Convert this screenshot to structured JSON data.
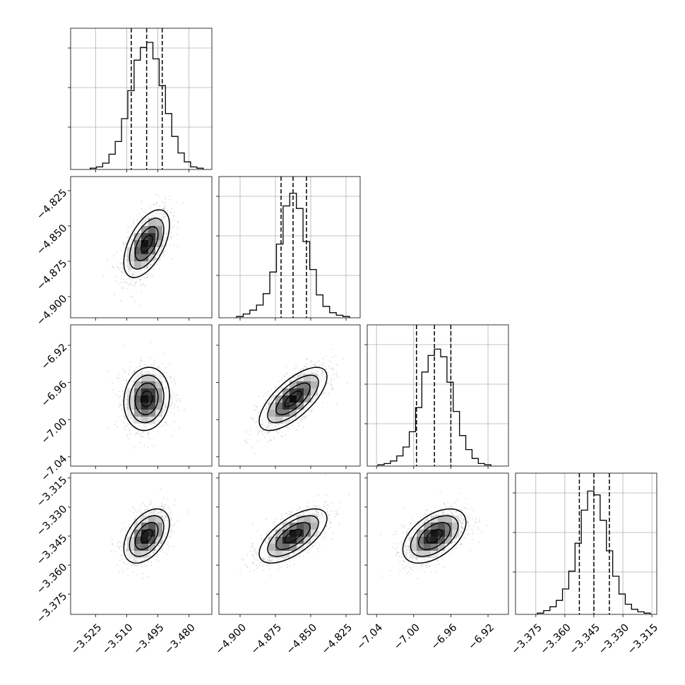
{
  "chart_data": {
    "type": "corner",
    "title": "",
    "parameters": [
      {
        "label": "",
        "range": [
          -3.537,
          -3.469
        ],
        "ticks": [
          -3.525,
          -3.51,
          -3.495,
          -3.48
        ],
        "tick_labels": [
          "−3.525",
          "−3.510",
          "−3.495",
          "−3.480"
        ]
      },
      {
        "label": "",
        "range": [
          -4.915,
          -4.815
        ],
        "ticks": [
          -4.9,
          -4.875,
          -4.85,
          -4.825
        ],
        "tick_labels": [
          "−4.900",
          "−4.875",
          "−4.850",
          "−4.825"
        ]
      },
      {
        "label": "",
        "range": [
          -7.05,
          -6.898
        ],
        "ticks": [
          -7.04,
          -7.0,
          -6.96,
          -6.92
        ],
        "tick_labels": [
          "−7.04",
          "−7.00",
          "−6.96",
          "−6.92"
        ]
      },
      {
        "label": "",
        "range": [
          -3.3855,
          -3.3125
        ],
        "ticks": [
          -3.375,
          -3.36,
          -3.345,
          -3.33,
          -3.315
        ],
        "tick_labels": [
          "−3.375",
          "−3.360",
          "−3.345",
          "−3.330",
          "−3.315"
        ]
      }
    ],
    "marginals": [
      {
        "quantiles": [
          -3.5078,
          -3.5004,
          -3.4929
        ],
        "hist_max": 1.0,
        "counts": [
          0.01,
          0.02,
          0.05,
          0.12,
          0.22,
          0.4,
          0.62,
          0.86,
          0.96,
          1.0,
          0.87,
          0.66,
          0.44,
          0.26,
          0.13,
          0.06,
          0.02,
          0.01
        ]
      },
      {
        "quantiles": [
          -4.871,
          -4.8625,
          -4.853
        ],
        "hist_max": 1.0,
        "counts": [
          0.01,
          0.03,
          0.06,
          0.1,
          0.19,
          0.36,
          0.58,
          0.88,
          0.98,
          0.86,
          0.6,
          0.38,
          0.18,
          0.09,
          0.04,
          0.02,
          0.01
        ]
      },
      {
        "quantiles": [
          -6.997,
          -6.9777,
          -6.96
        ],
        "hist_max": 1.0,
        "counts": [
          0.01,
          0.02,
          0.04,
          0.08,
          0.15,
          0.27,
          0.46,
          0.74,
          0.87,
          0.92,
          0.86,
          0.66,
          0.43,
          0.24,
          0.13,
          0.06,
          0.02,
          0.01
        ]
      },
      {
        "quantiles": [
          -3.3525,
          -3.345,
          -3.337
        ],
        "hist_max": 1.0,
        "counts": [
          0.01,
          0.03,
          0.06,
          0.11,
          0.2,
          0.34,
          0.56,
          0.82,
          0.97,
          0.94,
          0.74,
          0.5,
          0.3,
          0.16,
          0.08,
          0.04,
          0.02,
          0.01
        ]
      }
    ],
    "pairs": [
      {
        "row": 1,
        "col": 0,
        "center": [
          -3.5004,
          -4.8625
        ],
        "sd": [
          0.0055,
          0.012
        ],
        "corr": 0.55
      },
      {
        "row": 2,
        "col": 0,
        "center": [
          -3.5004,
          -6.9777
        ],
        "sd": [
          0.0055,
          0.017
        ],
        "corr": 0.1
      },
      {
        "row": 2,
        "col": 1,
        "center": [
          -4.8625,
          -6.9777
        ],
        "sd": [
          0.012,
          0.017
        ],
        "corr": 0.7
      },
      {
        "row": 3,
        "col": 0,
        "center": [
          -3.5004,
          -3.345
        ],
        "sd": [
          0.0055,
          0.007
        ],
        "corr": 0.45
      },
      {
        "row": 3,
        "col": 1,
        "center": [
          -4.8625,
          -3.345
        ],
        "sd": [
          0.012,
          0.007
        ],
        "corr": 0.65
      },
      {
        "row": 3,
        "col": 2,
        "center": [
          -6.9777,
          -3.345
        ],
        "sd": [
          0.017,
          0.007
        ],
        "corr": 0.5
      }
    ],
    "grid": true,
    "legend": "none"
  }
}
